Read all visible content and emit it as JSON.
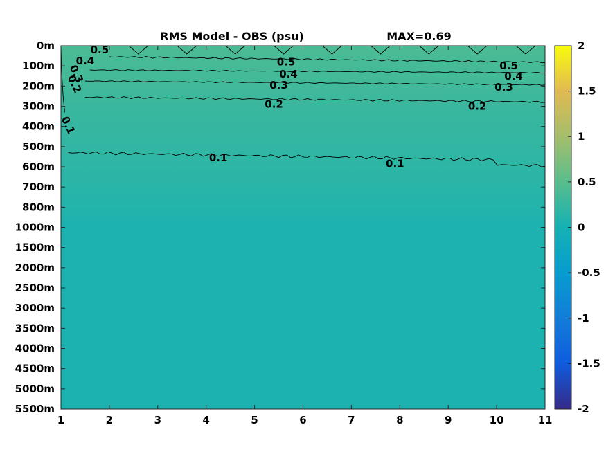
{
  "chart_data": {
    "type": "heatmap",
    "title": "RMS Model - OBS (psu)",
    "max_label": "MAX=0.69",
    "x_ticks": [
      "1",
      "2",
      "3",
      "4",
      "5",
      "6",
      "7",
      "8",
      "9",
      "10",
      "11"
    ],
    "xlim": [
      1,
      11
    ],
    "y_ticks": [
      "0m",
      "100m",
      "200m",
      "300m",
      "400m",
      "500m",
      "600m",
      "700m",
      "800m",
      "1000m",
      "1500m",
      "2000m",
      "2500m",
      "3000m",
      "3500m",
      "4000m",
      "4500m",
      "5000m",
      "5500m"
    ],
    "colorbar": {
      "ticks": [
        "2",
        "1.5",
        "1",
        "0.5",
        "0",
        "-0.5",
        "-1",
        "-1.5",
        "-2"
      ],
      "range": [
        -2,
        2
      ],
      "colormap": "parula"
    },
    "grid": false,
    "field_levels": [
      {
        "depth": "0m",
        "value": 0.4
      },
      {
        "depth": "200m",
        "value": 0.33
      },
      {
        "depth": "300m",
        "value": 0.27
      },
      {
        "depth": "500m",
        "value": 0.21
      },
      {
        "depth": "700m",
        "value": 0.15
      },
      {
        "depth": "1000m",
        "value": 0.06
      },
      {
        "depth": "5500m",
        "value": 0.05
      }
    ],
    "contours": [
      {
        "level": 0.5,
        "labels": [
          {
            "text": "0.5",
            "x": 1.8,
            "depth_index": 0.2
          },
          {
            "text": "0.5",
            "x": 5.65,
            "depth_index": 0.8
          },
          {
            "text": "0.5",
            "x": 10.25,
            "depth_index": 1.0
          }
        ]
      },
      {
        "level": 0.4,
        "labels": [
          {
            "text": "0.4",
            "x": 1.5,
            "depth_index": 0.75
          },
          {
            "text": "0.4",
            "x": 5.7,
            "depth_index": 1.4
          },
          {
            "text": "0.4",
            "x": 10.35,
            "depth_index": 1.5
          }
        ]
      },
      {
        "level": 0.3,
        "labels": [
          {
            "text": "0.3",
            "x": 1.32,
            "depth_index": 1.4
          },
          {
            "text": "0.3",
            "x": 5.5,
            "depth_index": 1.95
          },
          {
            "text": "0.3",
            "x": 10.15,
            "depth_index": 2.05
          }
        ]
      },
      {
        "level": 0.2,
        "labels": [
          {
            "text": "0.2",
            "x": 1.28,
            "depth_index": 1.9
          },
          {
            "text": "0.2",
            "x": 5.4,
            "depth_index": 2.9
          },
          {
            "text": "0.2",
            "x": 9.6,
            "depth_index": 3.0
          }
        ]
      },
      {
        "level": 0.1,
        "labels": [
          {
            "text": "0.1",
            "x": 1.15,
            "depth_index": 3.95
          },
          {
            "text": "0.1",
            "x": 4.25,
            "depth_index": 5.55
          },
          {
            "text": "0.1",
            "x": 7.9,
            "depth_index": 5.85
          }
        ]
      }
    ]
  }
}
